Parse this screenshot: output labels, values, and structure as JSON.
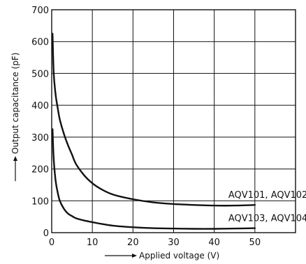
{
  "chart_data": {
    "type": "line",
    "xlabel": "Applied voltage (V)",
    "ylabel": "Output capacitance (pF)",
    "xlim": [
      0,
      60
    ],
    "ylim": [
      0,
      700
    ],
    "xticks": [
      0,
      10,
      20,
      30,
      40,
      50
    ],
    "yticks": [
      0,
      100,
      200,
      300,
      400,
      500,
      600,
      700
    ],
    "grid": true,
    "series": [
      {
        "name": "AQV101, AQV102",
        "x": [
          0.2,
          0.5,
          1,
          1.5,
          2,
          3,
          4,
          5,
          6,
          8,
          10,
          12,
          15,
          20,
          25,
          30,
          35,
          40,
          45,
          50
        ],
        "y": [
          625,
          500,
          430,
          390,
          355,
          310,
          275,
          245,
          215,
          180,
          155,
          138,
          120,
          105,
          95,
          90,
          87,
          85,
          85,
          87
        ]
      },
      {
        "name": "AQV103, AQV104",
        "x": [
          0.2,
          0.5,
          1,
          1.5,
          2,
          3,
          4,
          5,
          6,
          8,
          10,
          12,
          15,
          20,
          25,
          30,
          35,
          40,
          45,
          50
        ],
        "y": [
          325,
          230,
          160,
          125,
          100,
          75,
          60,
          52,
          45,
          38,
          33,
          28,
          22,
          17,
          14,
          13,
          12,
          12,
          13,
          14
        ]
      }
    ],
    "series_label_positions": [
      "right",
      "right"
    ]
  }
}
